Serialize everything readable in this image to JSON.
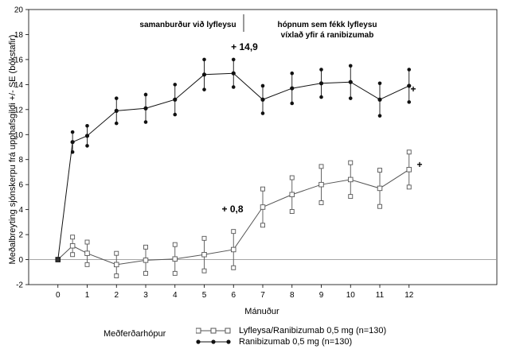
{
  "chart_data": {
    "type": "line",
    "ylabel": "Meðalbreyting sjónskerpu frá upphafsgildi +/- SE (bókstafir)",
    "xlabel": "Mánuður",
    "xlim": [
      -1,
      15
    ],
    "ylim": [
      -2,
      20
    ],
    "x_ticks": [
      0,
      1,
      2,
      3,
      4,
      5,
      6,
      7,
      8,
      9,
      10,
      11,
      12
    ],
    "y_ticks": [
      -2,
      0,
      2,
      4,
      6,
      8,
      10,
      12,
      14,
      16,
      18,
      20
    ],
    "series": [
      {
        "name": "Lyfleysa/Ranibizumab 0,5 mg (n=130)",
        "marker": "square",
        "x": [
          0,
          0.5,
          1,
          2,
          3,
          4,
          5,
          6,
          7,
          8,
          9,
          10,
          11,
          12
        ],
        "y": [
          0,
          1.1,
          0.5,
          -0.4,
          -0.05,
          0.05,
          0.4,
          0.8,
          4.2,
          5.2,
          6.0,
          6.4,
          5.7,
          7.2
        ],
        "se": [
          0,
          0.7,
          0.9,
          0.9,
          1.05,
          1.15,
          1.3,
          1.45,
          1.45,
          1.35,
          1.45,
          1.35,
          1.45,
          1.4
        ]
      },
      {
        "name": "Ranibizumab 0,5 mg (n=130)",
        "marker": "circle",
        "x": [
          0,
          0.5,
          1,
          2,
          3,
          4,
          5,
          6,
          7,
          8,
          9,
          10,
          11,
          12
        ],
        "y": [
          0,
          9.4,
          9.9,
          11.9,
          12.1,
          12.8,
          14.8,
          14.9,
          12.8,
          13.7,
          14.1,
          14.2,
          12.8,
          13.9
        ],
        "se": [
          0,
          0.8,
          0.8,
          1.0,
          1.1,
          1.2,
          1.2,
          1.1,
          1.1,
          1.2,
          1.1,
          1.3,
          1.3,
          1.3
        ]
      }
    ],
    "annotations": {
      "left_phase": "samanburður við lyfleysu",
      "right_phase_line1": "hópnum sem fékk lyfleysu",
      "right_phase_line2": "víxlað yfir á ranibizumab",
      "upper_value": "+ 14,9",
      "lower_value": "+ 0,8",
      "upper_marker": "+",
      "lower_marker": "+"
    },
    "legend": {
      "title": "Meðferðarhópur",
      "placement": "bottom"
    }
  }
}
